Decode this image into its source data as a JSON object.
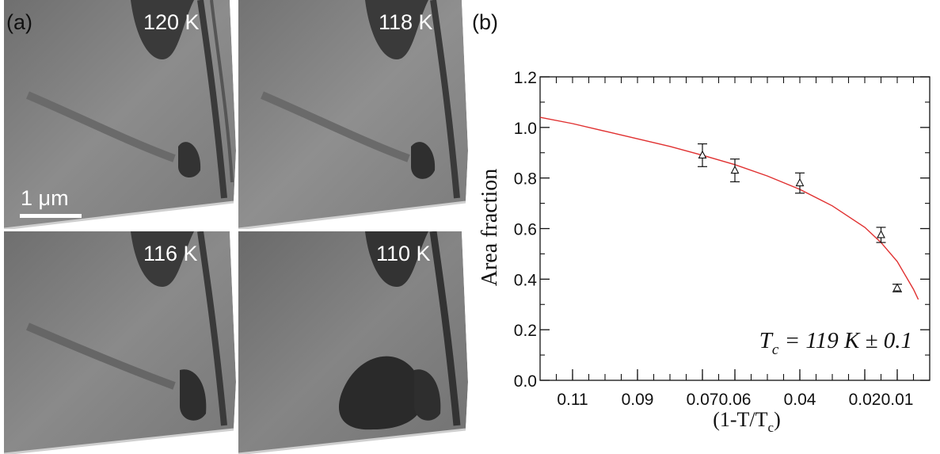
{
  "panel_a": {
    "label": "(a)",
    "scale_bar": "1 μm",
    "images": [
      {
        "temperature": "120 K"
      },
      {
        "temperature": "118 K"
      },
      {
        "temperature": "116 K"
      },
      {
        "temperature": "110 K"
      }
    ]
  },
  "panel_b": {
    "label": "(b)"
  },
  "colors": {
    "fit_line": "#e03030",
    "image_base": "#8a8a8a",
    "image_dark": "#2e2e2e",
    "text_on_image": "#ffffff"
  },
  "chart_data": {
    "type": "scatter",
    "title": "",
    "ylabel": "Area fraction",
    "xlabel_main": "(1-T/T",
    "xlabel_sub": "c",
    "xlabel_end": ")",
    "x_reversed": true,
    "xlim": [
      0.12,
      0.0
    ],
    "ylim": [
      0.0,
      1.2
    ],
    "x_ticks": [
      0.11,
      0.09,
      0.07,
      0.06,
      0.04,
      0.02,
      0.01
    ],
    "x_tick_labels": [
      "0.11",
      "0.09",
      "0.07",
      "0.06",
      "0.04",
      "0.02",
      "0.01"
    ],
    "y_ticks": [
      0.0,
      0.2,
      0.4,
      0.6,
      0.8,
      1.0,
      1.2
    ],
    "y_tick_labels": [
      "0.0",
      "0.2",
      "0.4",
      "0.6",
      "0.8",
      "1.0",
      "1.2"
    ],
    "series": [
      {
        "marker": "triangle",
        "points": [
          {
            "x": 0.07,
            "y": 0.89,
            "err": 0.045
          },
          {
            "x": 0.06,
            "y": 0.83,
            "err": 0.045
          },
          {
            "x": 0.04,
            "y": 0.78,
            "err": 0.04
          },
          {
            "x": 0.015,
            "y": 0.575,
            "err": 0.03
          },
          {
            "x": 0.01,
            "y": 0.365,
            "err": 0.015
          }
        ]
      }
    ],
    "fit": {
      "points": [
        [
          0.12,
          1.04
        ],
        [
          0.11,
          1.015
        ],
        [
          0.1,
          0.985
        ],
        [
          0.09,
          0.955
        ],
        [
          0.08,
          0.925
        ],
        [
          0.07,
          0.89
        ],
        [
          0.06,
          0.853
        ],
        [
          0.05,
          0.808
        ],
        [
          0.04,
          0.755
        ],
        [
          0.03,
          0.69
        ],
        [
          0.02,
          0.605
        ],
        [
          0.015,
          0.545
        ],
        [
          0.01,
          0.47
        ],
        [
          0.005,
          0.36
        ],
        [
          0.0035,
          0.32
        ]
      ]
    },
    "annotation": {
      "main": "T",
      "sub": "c",
      "rest": " = 119 K ± 0.1"
    }
  }
}
